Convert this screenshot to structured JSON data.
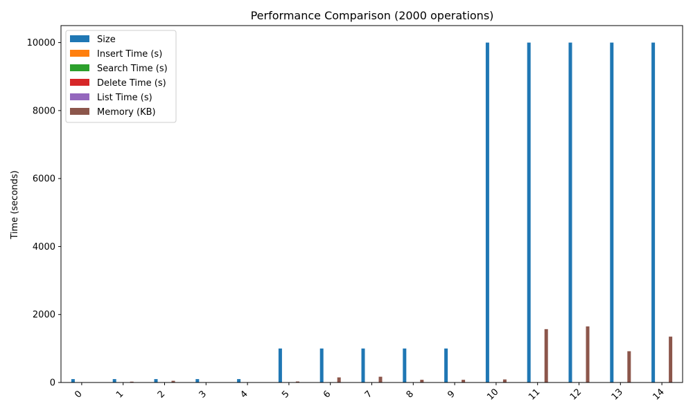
{
  "chart_data": {
    "type": "bar",
    "title": "Performance Comparison (2000 operations)",
    "xlabel": "",
    "ylabel": "Time (seconds)",
    "ylim": [
      0,
      10500
    ],
    "yticks": [
      0,
      2000,
      4000,
      6000,
      8000,
      10000
    ],
    "categories": [
      "0",
      "1",
      "2",
      "3",
      "4",
      "5",
      "6",
      "7",
      "8",
      "9",
      "10",
      "11",
      "12",
      "13",
      "14"
    ],
    "legend_position": "top-left",
    "grid": false,
    "series": [
      {
        "name": "Size",
        "color": "#1f77b4",
        "values": [
          100,
          100,
          100,
          100,
          100,
          1000,
          1000,
          1000,
          1000,
          1000,
          10000,
          10000,
          10000,
          10000,
          10000
        ]
      },
      {
        "name": "Insert Time (s)",
        "color": "#ff7f0e",
        "values": [
          0.02,
          0.03,
          0.05,
          0.02,
          0.01,
          0.1,
          0.3,
          0.4,
          0.2,
          0.2,
          1,
          4,
          5,
          3,
          4
        ]
      },
      {
        "name": "Search Time (s)",
        "color": "#2ca02c",
        "values": [
          0.01,
          0.01,
          0.02,
          0.01,
          0.01,
          0.05,
          0.2,
          0.3,
          0.1,
          0.1,
          1,
          3,
          4,
          2,
          3
        ]
      },
      {
        "name": "Delete Time (s)",
        "color": "#d62728",
        "values": [
          0.01,
          0.01,
          0.02,
          0.01,
          0.01,
          0.05,
          0.2,
          0.3,
          0.1,
          0.1,
          1,
          3,
          4,
          2,
          3
        ]
      },
      {
        "name": "List Time (s)",
        "color": "#9467bd",
        "values": [
          0.01,
          0.01,
          0.01,
          0.01,
          0.01,
          0.02,
          0.05,
          0.05,
          0.03,
          0.03,
          0.1,
          0.5,
          0.5,
          0.3,
          0.4
        ]
      },
      {
        "name": "Memory (KB)",
        "color": "#8c564b",
        "values": [
          5,
          25,
          50,
          5,
          5,
          30,
          150,
          170,
          80,
          80,
          90,
          1570,
          1650,
          920,
          1350
        ]
      }
    ]
  }
}
